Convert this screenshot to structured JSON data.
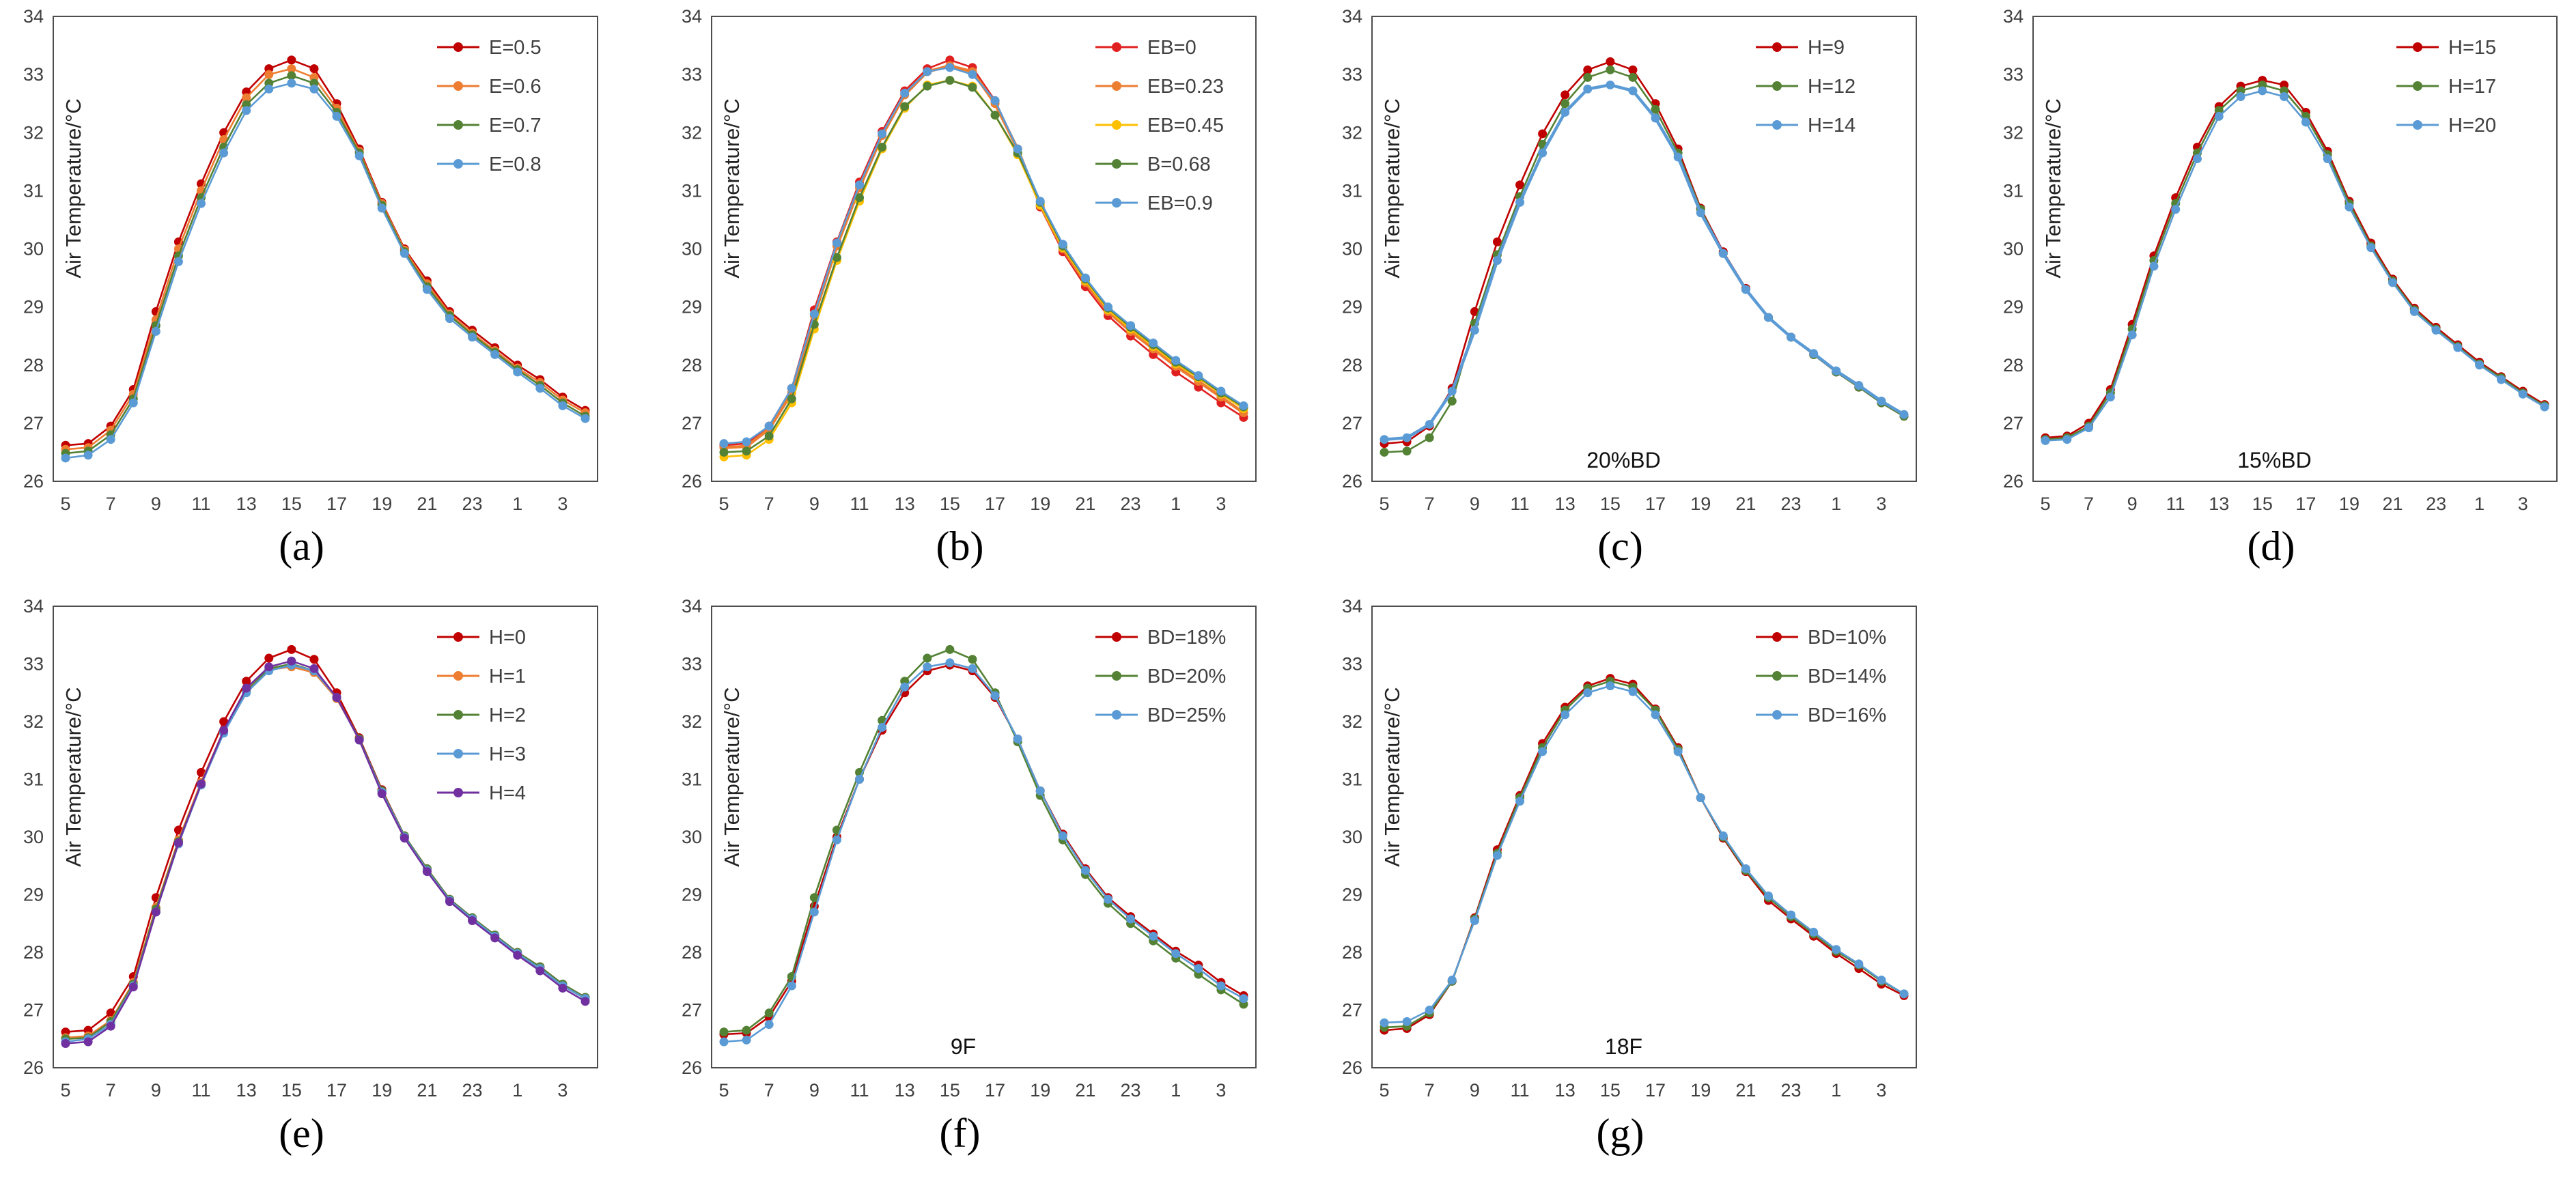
{
  "chart_data": [
    {
      "panel": "(a)",
      "type": "line",
      "ylabel": "Air Temperature/°C",
      "ylim": [
        26,
        34
      ],
      "xtick_labels": [
        "5",
        "7",
        "9",
        "11",
        "13",
        "15",
        "17",
        "19",
        "21",
        "23",
        "1",
        "3"
      ],
      "annotation": "",
      "series": [
        {
          "name": "E=0.5",
          "color": "#c00000",
          "values": [
            26.62,
            26.65,
            26.95,
            27.58,
            28.92,
            30.12,
            31.12,
            32.0,
            32.7,
            33.1,
            33.25,
            33.1,
            32.5,
            31.72,
            30.8,
            30.0,
            29.45,
            28.92,
            28.6,
            28.3,
            28.0,
            27.75,
            27.45,
            27.22
          ]
        },
        {
          "name": "E=0.6",
          "color": "#ed7d31",
          "values": [
            26.55,
            26.58,
            26.88,
            27.5,
            28.78,
            30.0,
            31.0,
            31.88,
            32.6,
            33.0,
            33.1,
            32.95,
            32.42,
            31.68,
            30.78,
            29.98,
            29.4,
            28.88,
            28.55,
            28.25,
            27.95,
            27.7,
            27.4,
            27.18
          ]
        },
        {
          "name": "E=0.7",
          "color": "#548235",
          "values": [
            26.48,
            26.52,
            26.8,
            27.42,
            28.68,
            29.88,
            30.88,
            31.75,
            32.48,
            32.85,
            32.98,
            32.85,
            32.35,
            31.65,
            30.75,
            29.95,
            29.35,
            28.85,
            28.52,
            28.22,
            27.92,
            27.65,
            27.35,
            27.12
          ]
        },
        {
          "name": "E=0.8",
          "color": "#5b9bd5",
          "values": [
            26.4,
            26.45,
            26.72,
            27.35,
            28.58,
            29.78,
            30.78,
            31.65,
            32.38,
            32.75,
            32.85,
            32.75,
            32.28,
            31.6,
            30.7,
            29.92,
            29.3,
            28.8,
            28.48,
            28.18,
            27.88,
            27.6,
            27.3,
            27.08
          ]
        }
      ]
    },
    {
      "panel": "(b)",
      "type": "line",
      "ylabel": "Air Temperature/°C",
      "ylim": [
        26,
        34
      ],
      "xtick_labels": [
        "5",
        "7",
        "9",
        "11",
        "13",
        "15",
        "17",
        "19",
        "21",
        "23",
        "1",
        "3"
      ],
      "annotation": "",
      "series": [
        {
          "name": "EB=0",
          "color": "#e02020",
          "values": [
            26.62,
            26.65,
            26.95,
            27.6,
            28.95,
            30.12,
            31.15,
            32.02,
            32.72,
            33.1,
            33.25,
            33.12,
            32.55,
            31.72,
            30.72,
            29.95,
            29.35,
            28.85,
            28.5,
            28.18,
            27.88,
            27.62,
            27.35,
            27.1
          ]
        },
        {
          "name": "EB=0.23",
          "color": "#ed7d31",
          "values": [
            26.58,
            26.6,
            26.9,
            27.52,
            28.85,
            30.05,
            31.05,
            31.95,
            32.65,
            33.05,
            33.15,
            33.05,
            32.5,
            31.72,
            30.75,
            30.0,
            29.42,
            28.92,
            28.58,
            28.28,
            27.98,
            27.72,
            27.45,
            27.18
          ]
        },
        {
          "name": "EB=0.45",
          "color": "#ffc000",
          "values": [
            26.42,
            26.45,
            26.72,
            27.35,
            28.62,
            29.8,
            30.82,
            31.72,
            32.42,
            32.82,
            32.9,
            32.8,
            32.3,
            31.62,
            30.75,
            30.02,
            29.45,
            28.95,
            28.62,
            28.32,
            28.02,
            27.78,
            27.5,
            27.25
          ]
        },
        {
          "name": "B=0.68",
          "color": "#548235",
          "values": [
            26.5,
            26.52,
            26.78,
            27.42,
            28.7,
            29.85,
            30.88,
            31.75,
            32.45,
            32.8,
            32.9,
            32.78,
            32.3,
            31.65,
            30.8,
            30.05,
            29.48,
            28.98,
            28.65,
            28.35,
            28.05,
            27.8,
            27.52,
            27.28
          ]
        },
        {
          "name": "EB=0.9",
          "color": "#5b9bd5",
          "values": [
            26.65,
            26.68,
            26.95,
            27.6,
            28.88,
            30.1,
            31.1,
            31.98,
            32.68,
            33.05,
            33.12,
            33.0,
            32.55,
            31.72,
            30.82,
            30.08,
            29.5,
            29.0,
            28.68,
            28.38,
            28.08,
            27.82,
            27.55,
            27.3
          ]
        }
      ]
    },
    {
      "panel": "(c)",
      "type": "line",
      "ylabel": "Air Temperature/°C",
      "ylim": [
        26,
        34
      ],
      "xtick_labels": [
        "5",
        "7",
        "9",
        "11",
        "13",
        "15",
        "17",
        "19",
        "21",
        "23",
        "1",
        "3"
      ],
      "annotation": "20%BD",
      "series": [
        {
          "name": "H=9",
          "color": "#c00000",
          "values": [
            26.65,
            26.68,
            26.95,
            27.6,
            28.92,
            30.12,
            31.1,
            31.98,
            32.65,
            33.08,
            33.22,
            33.08,
            32.5,
            31.72,
            30.7,
            29.95,
            29.32,
            28.82,
            28.48,
            28.18,
            27.88,
            27.62,
            27.35,
            27.12
          ]
        },
        {
          "name": "H=12",
          "color": "#548235",
          "values": [
            26.5,
            26.52,
            26.75,
            27.38,
            28.72,
            29.9,
            30.9,
            31.8,
            32.5,
            32.95,
            33.08,
            32.95,
            32.4,
            31.65,
            30.68,
            29.92,
            29.3,
            28.82,
            28.48,
            28.18,
            27.88,
            27.62,
            27.35,
            27.12
          ]
        },
        {
          "name": "H=14",
          "color": "#5b9bd5",
          "values": [
            26.72,
            26.75,
            26.98,
            27.55,
            28.6,
            29.8,
            30.8,
            31.65,
            32.35,
            32.75,
            32.82,
            32.72,
            32.25,
            31.58,
            30.62,
            29.92,
            29.3,
            28.82,
            28.48,
            28.2,
            27.9,
            27.65,
            27.38,
            27.15
          ]
        }
      ]
    },
    {
      "panel": "(d)",
      "type": "line",
      "ylabel": "Air Temperature/°C",
      "ylim": [
        26,
        34
      ],
      "xtick_labels": [
        "5",
        "7",
        "9",
        "11",
        "13",
        "15",
        "17",
        "19",
        "21",
        "23",
        "1",
        "3"
      ],
      "annotation": "15%BD",
      "series": [
        {
          "name": "H=15",
          "color": "#c00000",
          "values": [
            26.75,
            26.78,
            27.0,
            27.58,
            28.7,
            29.88,
            30.88,
            31.75,
            32.45,
            32.8,
            32.9,
            32.82,
            32.35,
            31.68,
            30.82,
            30.1,
            29.48,
            28.98,
            28.65,
            28.35,
            28.05,
            27.8,
            27.55,
            27.32
          ]
        },
        {
          "name": "H=17",
          "color": "#548235",
          "values": [
            26.72,
            26.75,
            26.95,
            27.52,
            28.62,
            29.8,
            30.78,
            31.65,
            32.38,
            32.72,
            32.82,
            32.72,
            32.28,
            31.62,
            30.78,
            30.05,
            29.45,
            28.95,
            28.62,
            28.32,
            28.02,
            27.78,
            27.52,
            27.3
          ]
        },
        {
          "name": "H=20",
          "color": "#5b9bd5",
          "values": [
            26.7,
            26.72,
            26.92,
            27.45,
            28.52,
            29.7,
            30.68,
            31.55,
            32.28,
            32.62,
            32.72,
            32.62,
            32.18,
            31.55,
            30.72,
            30.02,
            29.42,
            28.92,
            28.6,
            28.3,
            28.0,
            27.75,
            27.5,
            27.28
          ]
        }
      ]
    },
    {
      "panel": "(e)",
      "type": "line",
      "ylabel": "Air Temperature/°C",
      "ylim": [
        26,
        34
      ],
      "xtick_labels": [
        "5",
        "7",
        "9",
        "11",
        "13",
        "15",
        "17",
        "19",
        "21",
        "23",
        "1",
        "3"
      ],
      "annotation": "",
      "series": [
        {
          "name": "H=0",
          "color": "#c00000",
          "values": [
            26.62,
            26.65,
            26.95,
            27.58,
            28.95,
            30.12,
            31.12,
            32.0,
            32.7,
            33.1,
            33.25,
            33.08,
            32.5,
            31.72,
            30.82,
            30.02,
            29.45,
            28.92,
            28.6,
            28.3,
            28.0,
            27.75,
            27.45,
            27.22
          ]
        },
        {
          "name": "H=1",
          "color": "#ed7d31",
          "values": [
            26.52,
            26.55,
            26.82,
            27.48,
            28.78,
            29.95,
            30.95,
            31.85,
            32.55,
            32.9,
            32.95,
            32.85,
            32.4,
            31.7,
            30.78,
            30.0,
            29.42,
            28.9,
            28.58,
            28.28,
            27.98,
            27.72,
            27.42,
            27.2
          ]
        },
        {
          "name": "H=2",
          "color": "#548235",
          "values": [
            26.5,
            26.52,
            26.8,
            27.45,
            28.75,
            29.92,
            30.92,
            31.82,
            32.52,
            32.92,
            33.0,
            32.88,
            32.42,
            31.7,
            30.8,
            30.02,
            29.45,
            28.92,
            28.6,
            28.3,
            28.0,
            27.75,
            27.45,
            27.22
          ]
        },
        {
          "name": "H=3",
          "color": "#5b9bd5",
          "values": [
            26.45,
            26.5,
            26.75,
            27.42,
            28.7,
            29.88,
            30.9,
            31.8,
            32.5,
            32.88,
            32.98,
            32.88,
            32.42,
            31.68,
            30.78,
            30.0,
            29.42,
            28.9,
            28.58,
            28.28,
            27.98,
            27.72,
            27.42,
            27.2
          ]
        },
        {
          "name": "H=4",
          "color": "#7030a0",
          "values": [
            26.42,
            26.45,
            26.72,
            27.4,
            28.7,
            29.9,
            30.92,
            31.85,
            32.58,
            32.95,
            33.05,
            32.92,
            32.42,
            31.68,
            30.75,
            29.98,
            29.4,
            28.88,
            28.55,
            28.25,
            27.95,
            27.68,
            27.38,
            27.15
          ]
        }
      ]
    },
    {
      "panel": "(f)",
      "type": "line",
      "ylabel": "Air Temperature/°C",
      "ylim": [
        26,
        34
      ],
      "xtick_labels": [
        "5",
        "7",
        "9",
        "11",
        "13",
        "15",
        "17",
        "19",
        "21",
        "23",
        "1",
        "3"
      ],
      "annotation": "9F",
      "series": [
        {
          "name": "BD=18%",
          "color": "#c00000",
          "values": [
            26.58,
            26.6,
            26.88,
            27.5,
            28.8,
            30.0,
            31.0,
            31.85,
            32.5,
            32.88,
            32.98,
            32.88,
            32.42,
            31.7,
            30.8,
            30.05,
            29.45,
            28.95,
            28.62,
            28.32,
            28.02,
            27.78,
            27.48,
            27.25
          ]
        },
        {
          "name": "BD=20%",
          "color": "#548235",
          "values": [
            26.62,
            26.65,
            26.95,
            27.58,
            28.95,
            30.12,
            31.12,
            32.02,
            32.7,
            33.1,
            33.25,
            33.08,
            32.5,
            31.65,
            30.72,
            29.95,
            29.35,
            28.85,
            28.5,
            28.2,
            27.9,
            27.62,
            27.35,
            27.1
          ]
        },
        {
          "name": "BD=25%",
          "color": "#5b9bd5",
          "values": [
            26.45,
            26.48,
            26.75,
            27.42,
            28.7,
            29.95,
            31.0,
            31.9,
            32.6,
            32.95,
            33.02,
            32.92,
            32.45,
            31.7,
            30.8,
            30.02,
            29.42,
            28.92,
            28.58,
            28.28,
            27.98,
            27.72,
            27.42,
            27.2
          ]
        }
      ]
    },
    {
      "panel": "(g)",
      "type": "line",
      "ylabel": "Air Temperature/°C",
      "ylim": [
        26,
        34
      ],
      "xtick_labels": [
        "5",
        "7",
        "9",
        "11",
        "13",
        "15",
        "17",
        "19",
        "21",
        "23",
        "1",
        "3"
      ],
      "annotation": "18F",
      "series": [
        {
          "name": "BD=10%",
          "color": "#c00000",
          "values": [
            26.65,
            26.68,
            26.92,
            27.5,
            28.6,
            29.78,
            30.72,
            31.62,
            32.25,
            32.62,
            32.75,
            32.65,
            32.22,
            31.55,
            30.68,
            29.98,
            29.4,
            28.9,
            28.58,
            28.28,
            27.98,
            27.72,
            27.45,
            27.25
          ]
        },
        {
          "name": "BD=14%",
          "color": "#548235",
          "values": [
            26.7,
            26.72,
            26.95,
            27.5,
            28.58,
            29.72,
            30.68,
            31.55,
            32.2,
            32.58,
            32.7,
            32.6,
            32.2,
            31.52,
            30.68,
            30.0,
            29.42,
            28.95,
            28.62,
            28.32,
            28.02,
            27.78,
            27.5,
            27.28
          ]
        },
        {
          "name": "BD=16%",
          "color": "#5b9bd5",
          "values": [
            26.78,
            26.8,
            27.0,
            27.52,
            28.55,
            29.68,
            30.62,
            31.48,
            32.12,
            32.5,
            32.62,
            32.52,
            32.12,
            31.48,
            30.68,
            30.02,
            29.45,
            28.98,
            28.65,
            28.35,
            28.05,
            27.8,
            27.52,
            27.28
          ]
        }
      ]
    }
  ]
}
